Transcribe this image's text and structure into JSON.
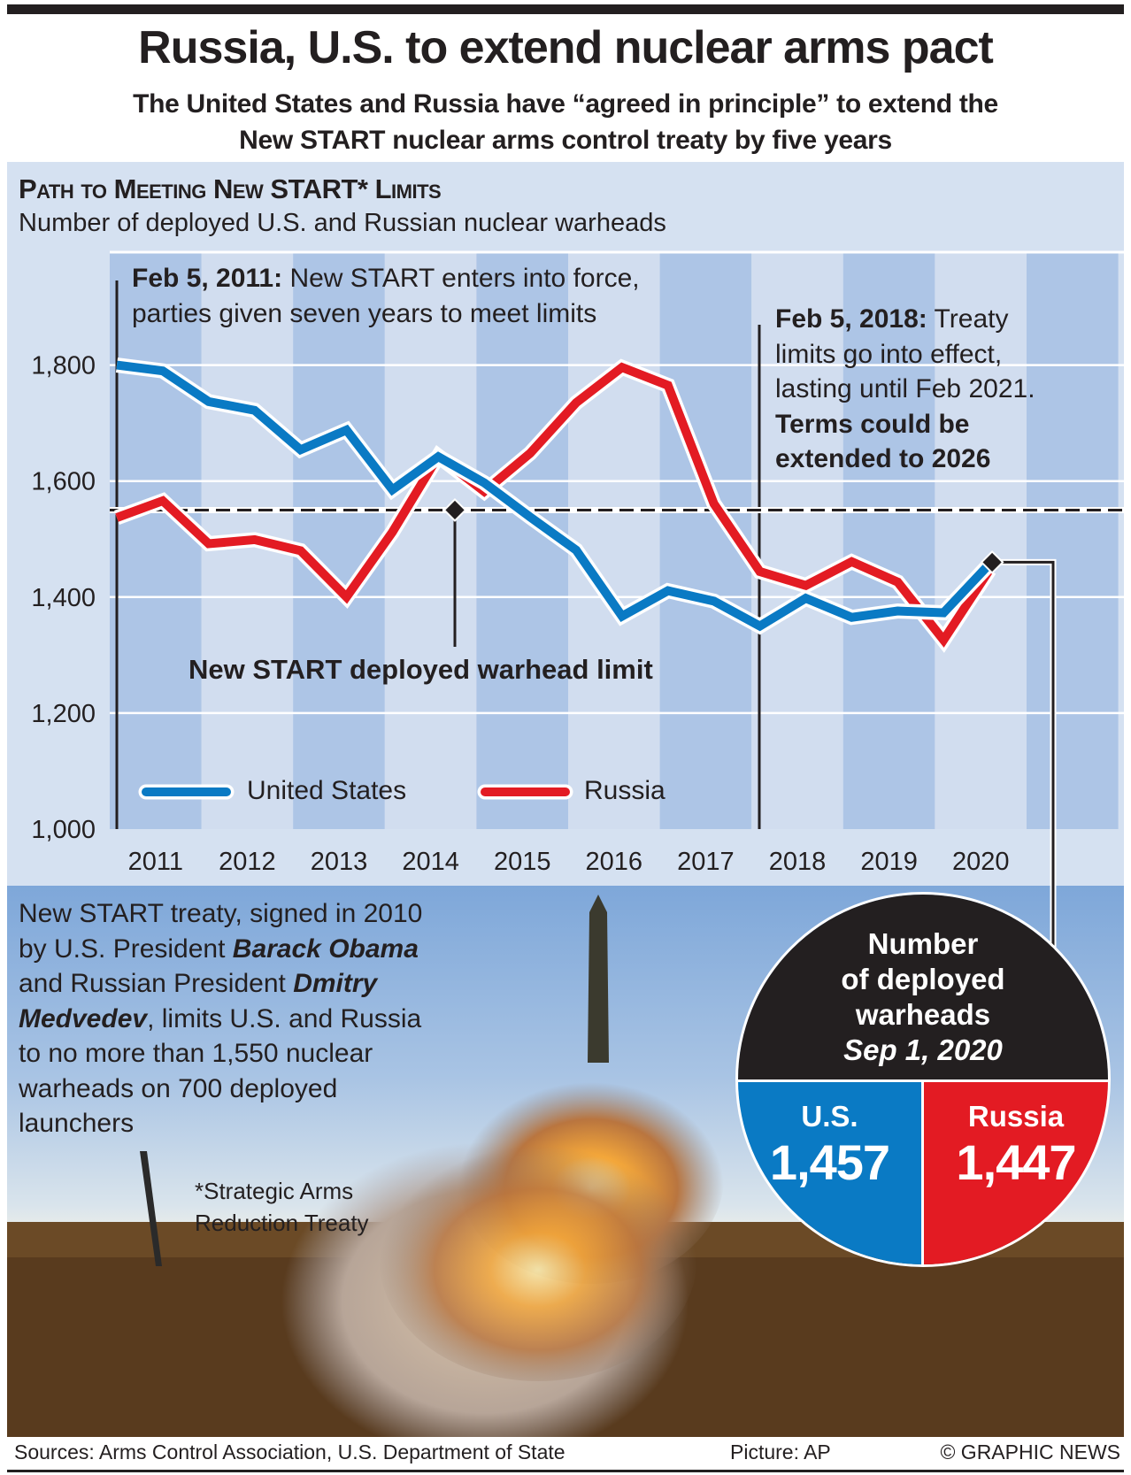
{
  "header": {
    "title": "Russia, U.S. to extend nuclear arms pact",
    "subtitle_line1": "The United States and Russia have “agreed in principle” to extend the",
    "subtitle_line2": "New START nuclear arms control treaty by five years"
  },
  "chart_data": {
    "type": "line",
    "title": "Path to Meeting New START* Limits",
    "subtitle": "Number of deployed U.S. and Russian nuclear warheads",
    "x": [
      "2011-02",
      "2011-09",
      "2012-03",
      "2012-09",
      "2013-03",
      "2013-09",
      "2014-03",
      "2014-09",
      "2015-03",
      "2015-09",
      "2016-03",
      "2016-09",
      "2017-03",
      "2017-09",
      "2018-02",
      "2018-09",
      "2019-03",
      "2019-09",
      "2020-03",
      "2020-09"
    ],
    "x_tick_labels": [
      "2011",
      "2012",
      "2013",
      "2014",
      "2015",
      "2016",
      "2017",
      "2018",
      "2019",
      "2020"
    ],
    "y_ticks": [
      1000,
      1200,
      1400,
      1600,
      1800
    ],
    "y_tick_labels": [
      "1,000",
      "1,200",
      "1,400",
      "1,600",
      "1,800"
    ],
    "ylim": [
      1000,
      1950
    ],
    "grid": true,
    "legend": "bottom-left",
    "series": [
      {
        "name": "United States",
        "color": "#0a7ac4",
        "values": [
          1800,
          1790,
          1737,
          1722,
          1654,
          1688,
          1585,
          1642,
          1597,
          1538,
          1481,
          1367,
          1411,
          1393,
          1350,
          1398,
          1365,
          1376,
          1373,
          1457
        ]
      },
      {
        "name": "Russia",
        "color": "#e31b23",
        "values": [
          1537,
          1566,
          1492,
          1499,
          1480,
          1400,
          1512,
          1643,
          1582,
          1648,
          1735,
          1796,
          1765,
          1561,
          1444,
          1420,
          1461,
          1426,
          1326,
          1447
        ]
      }
    ],
    "limit_line": {
      "value": 1550,
      "label": "New START deployed warhead limit"
    },
    "annotations": {
      "a1_bold": "Feb 5, 2011:",
      "a1_line1": " New START enters into force,",
      "a1_line2": "parties given seven years to meet limits",
      "a2_bold": "Feb 5, 2018:",
      "a2_line1": " Treaty",
      "a2_line2": "limits go into effect,",
      "a2_line3": "lasting until Feb 2021.",
      "a2_line4": "Terms could be",
      "a2_line5": "extended to 2026"
    }
  },
  "info": {
    "p1": "New START treaty, signed in 2010",
    "p2": "by U.S. President ",
    "p2b": "Barack Obama",
    "p3": "and Russian President ",
    "p3b": "Dmitry",
    "p4b": "Medvedev",
    "p4": ", limits U.S. and Russia",
    "p5": "to no more than 1,550 nuclear",
    "p6": "warheads on 700 deployed",
    "p7": "launchers",
    "footnote1": "*Strategic Arms",
    "footnote2": "Reduction Treaty"
  },
  "pie": {
    "head1": "Number",
    "head2": "of deployed",
    "head3": "warheads",
    "date": "Sep 1, 2020",
    "us_label": "U.S.",
    "us_value": "1,457",
    "ru_label": "Russia",
    "ru_value": "1,447"
  },
  "footer": {
    "sources": "Sources: Arms Control Association, U.S. Department of State",
    "picture": "Picture: AP",
    "copyright": "© GRAPHIC NEWS"
  },
  "colors": {
    "us": "#0a7ac4",
    "russia": "#e31b23",
    "band_dark": "#adc5e6",
    "band_light": "#d1ddef",
    "panel": "#d5e1f1"
  }
}
